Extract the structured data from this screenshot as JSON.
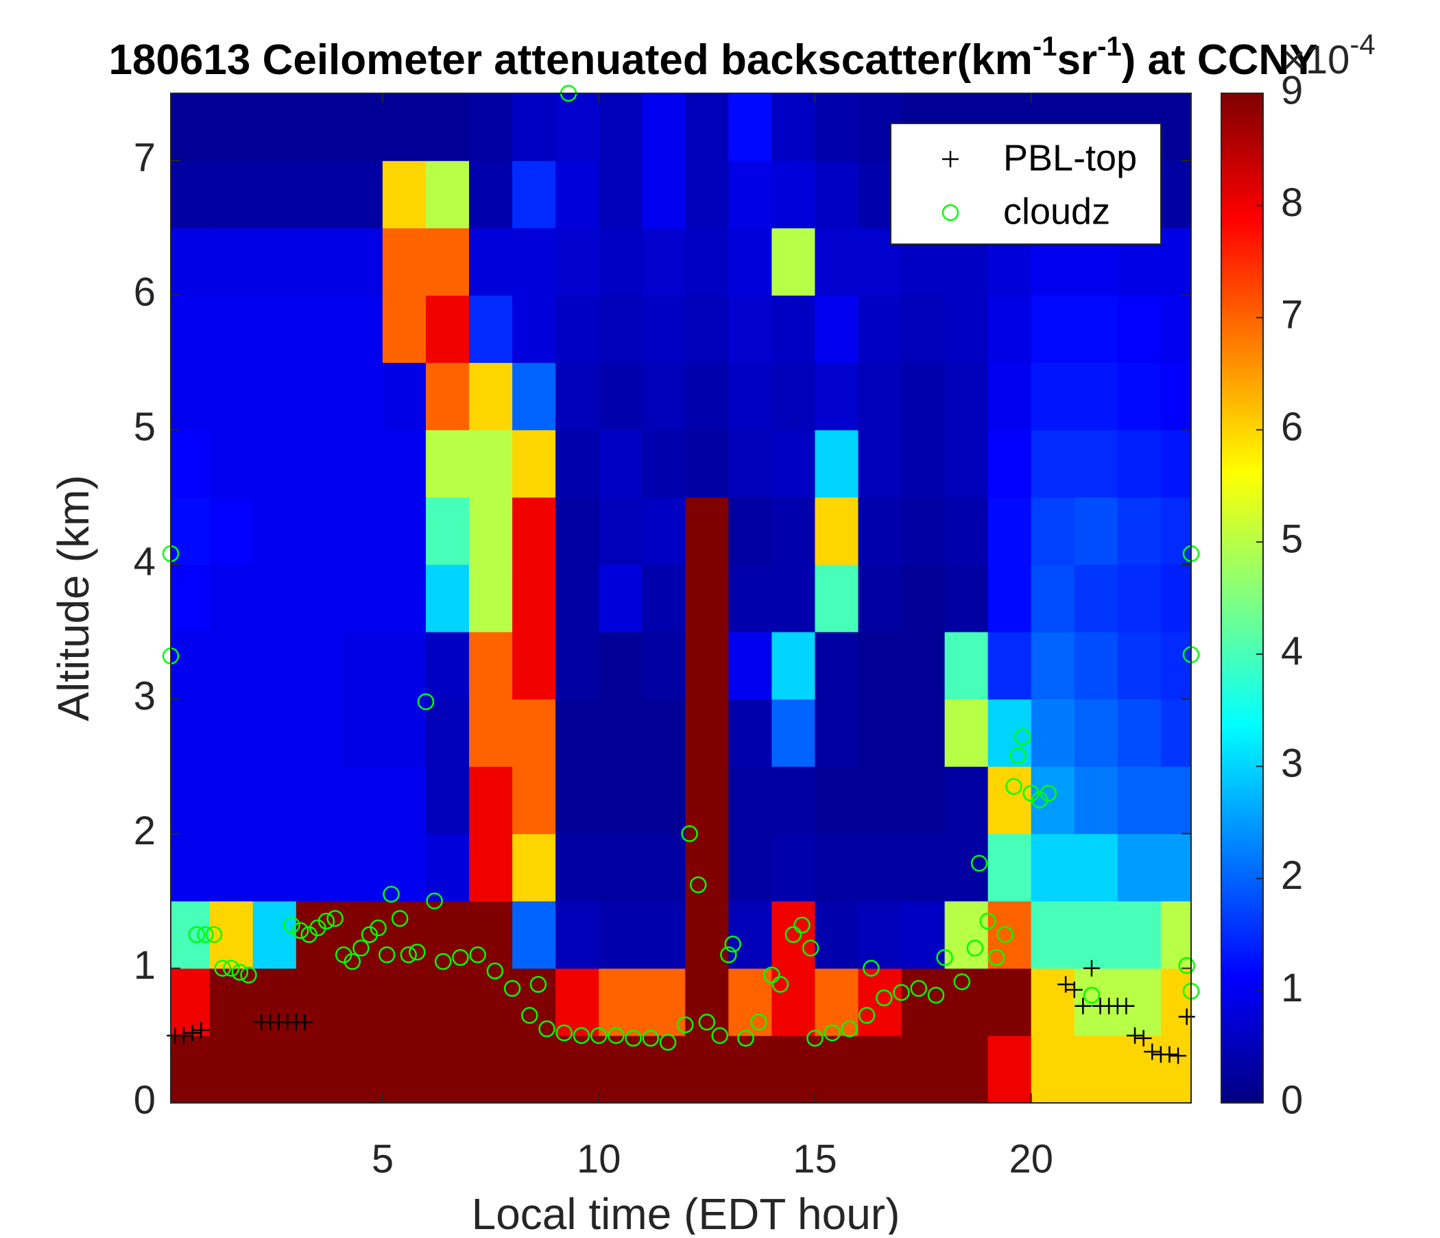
{
  "chart_data": {
    "type": "heatmap",
    "title": [
      "180613 Ceilometer attenuated backscatter(km",
      "-1",
      "sr",
      "-1",
      ") at CCNY"
    ],
    "x_label": "Local time (EDT hour)",
    "y_label": "Altitude (km)",
    "xlim": [
      0.1,
      23.7
    ],
    "ylim": [
      0,
      7.5
    ],
    "xticks": [
      5,
      10,
      15,
      20
    ],
    "yticks": [
      0,
      1,
      2,
      3,
      4,
      5,
      6,
      7
    ],
    "colormap": "jet",
    "clim": [
      0,
      9
    ],
    "cticks": [
      0,
      1,
      2,
      3,
      4,
      5,
      6,
      7,
      8,
      9
    ],
    "colorbar_label": [
      "×10",
      "-4"
    ],
    "legend": "north east",
    "heatmap": {
      "x": [
        0.5,
        1.5,
        2.5,
        3.5,
        4.5,
        5.5,
        6.5,
        7.5,
        8.5,
        9.5,
        10.5,
        11.5,
        12.5,
        13.5,
        14.5,
        15.5,
        16.5,
        17.5,
        18.5,
        19.5,
        20.5,
        21.5,
        22.5,
        23.5
      ],
      "y": [
        0.25,
        0.75,
        1.25,
        1.75,
        2.25,
        2.75,
        3.25,
        3.75,
        4.25,
        4.75,
        5.25,
        5.75,
        6.25,
        6.75,
        7.25
      ],
      "z": [
        [
          9,
          9,
          9,
          9,
          9,
          9,
          9,
          9,
          9,
          9,
          9,
          9,
          9,
          9,
          9,
          9,
          9,
          9,
          9,
          8,
          6,
          6,
          6,
          6
        ],
        [
          8,
          9,
          9,
          9,
          9,
          9,
          9,
          9,
          9,
          8,
          7,
          7,
          9,
          7,
          8,
          7,
          8,
          9,
          9,
          9,
          6,
          5,
          5,
          6
        ],
        [
          4,
          6,
          3,
          9,
          9,
          9,
          9,
          9,
          2,
          0.5,
          0.4,
          0.4,
          9,
          0.5,
          8,
          0.4,
          0.5,
          0.6,
          5,
          7,
          4,
          4,
          4,
          5
        ],
        [
          1,
          1,
          1,
          1,
          1,
          1,
          0.8,
          8,
          6,
          0.3,
          0.3,
          0.3,
          9,
          0.3,
          0.4,
          0.3,
          0.3,
          0.3,
          0.3,
          4,
          3,
          3,
          2.5,
          2.5
        ],
        [
          1,
          1,
          1,
          1,
          1,
          1,
          0.5,
          8,
          7,
          0.2,
          0.2,
          0.2,
          9,
          0.3,
          0.3,
          0.2,
          0.2,
          0.2,
          0.3,
          6,
          2.5,
          2.2,
          2,
          2
        ],
        [
          1,
          1,
          1,
          1,
          0.9,
          0.9,
          0.5,
          7,
          7,
          0.2,
          0.2,
          0.2,
          9,
          0.4,
          2,
          0.3,
          0.2,
          0.2,
          5,
          3,
          2.2,
          2,
          1.8,
          1.6
        ],
        [
          1,
          1,
          1,
          1,
          0.9,
          0.9,
          0.6,
          7,
          8,
          0.3,
          0.2,
          0.3,
          9,
          1,
          3,
          0.3,
          0.2,
          0.2,
          4,
          1.5,
          2,
          1.8,
          1.6,
          1.5
        ],
        [
          1.1,
          1,
          1,
          1,
          1,
          1,
          3,
          5,
          8,
          0.3,
          0.8,
          0.4,
          9,
          0.4,
          0.4,
          4,
          0.3,
          0.2,
          0.3,
          1.2,
          1.8,
          1.6,
          1.5,
          1.4
        ],
        [
          1.2,
          1.1,
          1,
          1,
          1,
          1,
          4,
          5,
          8,
          0.3,
          0.5,
          0.6,
          9,
          0.3,
          0.4,
          6,
          0.4,
          0.3,
          0.4,
          1.2,
          1.7,
          1.8,
          1.6,
          1.5
        ],
        [
          1.1,
          1,
          1,
          1,
          1,
          1,
          5,
          5,
          6,
          0.4,
          0.6,
          0.4,
          0.3,
          0.5,
          0.6,
          3,
          0.5,
          0.4,
          0.5,
          1.1,
          1.5,
          1.5,
          1.4,
          1.3
        ],
        [
          1,
          1,
          1,
          1,
          1,
          0.9,
          7,
          6,
          2,
          0.5,
          0.4,
          0.5,
          0.4,
          0.6,
          0.5,
          0.7,
          0.5,
          0.4,
          0.5,
          1,
          1.3,
          1.3,
          1.2,
          1.1
        ],
        [
          1,
          1,
          1,
          1,
          1,
          7,
          8,
          1.5,
          0.8,
          0.6,
          0.5,
          0.6,
          0.5,
          0.7,
          0.6,
          1,
          0.6,
          0.5,
          0.6,
          0.9,
          1.2,
          1.2,
          1.1,
          1
        ],
        [
          0.9,
          0.9,
          0.9,
          0.9,
          0.9,
          7,
          7,
          0.8,
          0.8,
          0.7,
          0.6,
          0.7,
          0.6,
          0.8,
          5,
          0.7,
          0.7,
          0.6,
          0.6,
          0.8,
          1,
          1,
          0.9,
          0.9
        ],
        [
          0.3,
          0.3,
          0.3,
          0.3,
          0.3,
          6,
          5,
          0.4,
          1.5,
          0.8,
          0.5,
          1,
          0.5,
          0.9,
          0.8,
          0.6,
          0.4,
          0.4,
          0.3,
          0.3,
          0.3,
          0.3,
          0.3,
          0.3
        ],
        [
          0.2,
          0.2,
          0.2,
          0.2,
          0.2,
          0.2,
          0.2,
          0.3,
          0.6,
          0.7,
          0.5,
          1,
          0.5,
          1.2,
          0.6,
          0.4,
          0.3,
          0.2,
          0.2,
          0.2,
          0.2,
          0.2,
          0.2,
          0.2
        ]
      ]
    },
    "series": [
      {
        "name": "PBL-top",
        "marker": "+",
        "color": "#000000",
        "x": [
          0.2,
          0.4,
          0.6,
          0.8,
          2.2,
          2.4,
          2.6,
          2.8,
          3.0,
          3.2,
          20.8,
          21.0,
          21.2,
          21.4,
          21.6,
          21.8,
          22.0,
          22.2,
          22.4,
          22.6,
          22.8,
          23.0,
          23.2,
          23.4,
          23.6
        ],
        "y": [
          0.5,
          0.5,
          0.52,
          0.54,
          0.6,
          0.6,
          0.6,
          0.6,
          0.6,
          0.6,
          0.88,
          0.84,
          0.72,
          1.0,
          0.72,
          0.72,
          0.72,
          0.72,
          0.5,
          0.48,
          0.38,
          0.36,
          0.36,
          0.35,
          0.64
        ]
      },
      {
        "name": "cloudz",
        "marker": "o",
        "color": "#00ff00",
        "x": [
          0.1,
          0.1,
          0.7,
          0.9,
          1.1,
          1.3,
          1.5,
          1.7,
          1.9,
          2.9,
          3.1,
          3.3,
          3.5,
          3.7,
          3.9,
          4.1,
          4.3,
          4.5,
          4.7,
          4.9,
          5.1,
          5.2,
          5.4,
          5.6,
          5.8,
          6.0,
          6.2,
          6.4,
          6.8,
          7.2,
          7.6,
          8.0,
          8.4,
          8.6,
          8.8,
          9.2,
          9.3,
          9.6,
          10.0,
          10.4,
          10.8,
          11.2,
          11.6,
          12.0,
          12.1,
          12.3,
          12.5,
          12.8,
          13.0,
          13.1,
          13.4,
          13.7,
          14.0,
          14.2,
          14.5,
          14.7,
          14.9,
          15.0,
          15.4,
          15.8,
          16.2,
          16.3,
          16.6,
          17.0,
          17.4,
          17.8,
          18.0,
          18.4,
          18.7,
          18.8,
          19.0,
          19.2,
          19.4,
          19.6,
          19.7,
          19.8,
          20.0,
          20.2,
          20.4,
          21.4,
          23.6,
          23.7,
          23.7,
          23.7
        ],
        "y": [
          4.08,
          3.32,
          1.25,
          1.25,
          1.25,
          1.0,
          1.0,
          0.97,
          0.95,
          1.32,
          1.28,
          1.25,
          1.3,
          1.35,
          1.37,
          1.1,
          1.05,
          1.15,
          1.25,
          1.3,
          1.1,
          1.55,
          1.37,
          1.1,
          1.12,
          2.98,
          1.5,
          1.05,
          1.08,
          1.1,
          0.98,
          0.85,
          0.65,
          0.88,
          0.55,
          0.52,
          7.5,
          0.5,
          0.5,
          0.5,
          0.48,
          0.48,
          0.45,
          0.58,
          2.0,
          1.62,
          0.6,
          0.5,
          1.1,
          1.18,
          0.48,
          0.6,
          0.95,
          0.88,
          1.25,
          1.32,
          1.15,
          0.48,
          0.52,
          0.55,
          0.65,
          1.0,
          0.78,
          0.82,
          0.85,
          0.8,
          1.08,
          0.9,
          1.15,
          1.78,
          1.35,
          1.08,
          1.25,
          2.35,
          2.58,
          2.72,
          2.3,
          2.25,
          2.3,
          0.8,
          1.02,
          4.08,
          3.33,
          0.83
        ]
      }
    ]
  }
}
